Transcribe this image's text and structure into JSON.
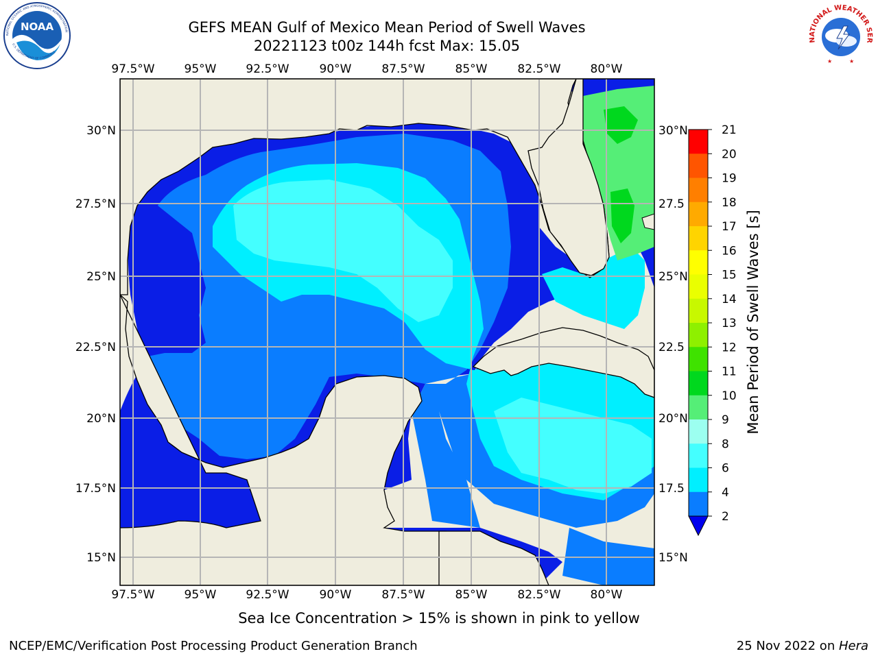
{
  "header": {
    "title_line1": "GEFS MEAN Gulf of Mexico Mean Period of Swell Waves",
    "title_line2": "20221123 t00z 144h fcst   Max: 15.05"
  },
  "logos": {
    "left": "NOAA",
    "left_ring_text": "NATIONAL OCEANIC AND ATMOSPHERIC ADMINISTRATION",
    "left_ring_bottom": "U.S. DEPARTMENT OF COMMERCE",
    "right_ring_text": "NATIONAL WEATHER SERVICE"
  },
  "map": {
    "lon_labels": [
      "97.5°W",
      "95°W",
      "92.5°W",
      "90°W",
      "87.5°W",
      "85°W",
      "82.5°W",
      "80°W"
    ],
    "lat_labels_left": [
      "30°N",
      "27.5°N",
      "25°N",
      "22.5°N",
      "20°N",
      "17.5°N",
      "15°N"
    ],
    "lat_labels_right": [
      "30°N",
      "27.5",
      "25°N",
      "22.5",
      "20°N",
      "17.5",
      "15°N"
    ],
    "colors": {
      "land": "#efedde",
      "grid": "#b5b5b5",
      "coast": "#000000"
    }
  },
  "colorbar": {
    "label": "Mean Period of Swell Waves [s]",
    "ticks": [
      "21",
      "20",
      "19",
      "18",
      "17",
      "16",
      "15",
      "14",
      "13",
      "12",
      "11",
      "10",
      "9",
      "8",
      "6",
      "4",
      "2"
    ],
    "colors": [
      "#ff0000",
      "#ff2a00",
      "#ff5500",
      "#ff7f00",
      "#ffaa00",
      "#ffd400",
      "#ffff00",
      "#eaff00",
      "#c8f800",
      "#8ef000",
      "#3fe200",
      "#00d81e",
      "#55ee77",
      "#9cfff0",
      "#44ffff",
      "#00efff",
      "#0a7dff"
    ],
    "under_color": "#0000ee"
  },
  "chart_data": {
    "type": "heatmap",
    "title": "GEFS MEAN Gulf of Mexico Mean Period of Swell Waves",
    "subtitle": "20221123 t00z 144h fcst   Max: 15.05",
    "colorbar_label": "Mean Period of Swell Waves [s]",
    "colorbar_levels": [
      2,
      4,
      6,
      8,
      9,
      10,
      11,
      12,
      13,
      14,
      15,
      16,
      17,
      18,
      19,
      20,
      21
    ],
    "max": 15.05,
    "x_range": [
      -98,
      -78.2
    ],
    "y_range": [
      14.1,
      31.8
    ]
  },
  "footer": {
    "note": "Sea Ice Concentration > 15% is shown in pink to yellow",
    "left": "NCEP/EMC/Verification Post Processing Product Generation Branch",
    "right_date": "25 Nov 2022 on ",
    "right_host": "Hera"
  }
}
